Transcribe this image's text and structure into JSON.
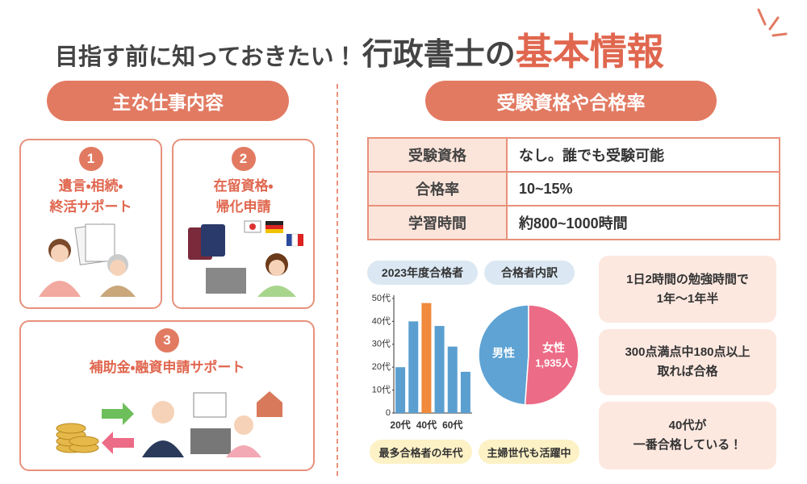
{
  "header": {
    "lead": "目指す前に知っておきたい！",
    "main": "行政書士の",
    "accent": "基本情報"
  },
  "jobs": {
    "heading": "主な仕事内容",
    "items": [
      {
        "number": "1",
        "lines": [
          "遺言・相続・",
          "終活サポート"
        ]
      },
      {
        "number": "2",
        "lines": [
          "在留資格・",
          "帰化申請"
        ]
      },
      {
        "number": "3",
        "lines": [
          "補助金・融資申請サポート"
        ]
      }
    ]
  },
  "exam": {
    "heading": "受験資格や合格率",
    "table": {
      "rows": [
        [
          "受験資格",
          "なし。誰でも受験可能"
        ],
        [
          "合格率",
          "10~15%"
        ],
        [
          "学習時間",
          "約800~1000時間"
        ]
      ]
    }
  },
  "chart_data": [
    {
      "type": "bar",
      "title": "2023年度合格者",
      "categories": [
        "20代",
        null,
        "40代",
        null,
        "60代",
        null
      ],
      "values": [
        20,
        40,
        48,
        38,
        29,
        18
      ],
      "colors": [
        "#5b9fd0",
        "#5b9fd0",
        "#f08a3c",
        "#5b9fd0",
        "#5b9fd0",
        "#5b9fd0"
      ],
      "ylim": [
        0,
        50
      ],
      "yticks": [
        0,
        {
          "value": 10,
          "label": "10代"
        },
        {
          "value": 20,
          "label": "20代"
        },
        {
          "value": 30,
          "label": "30代"
        },
        {
          "value": 40,
          "label": "40代"
        },
        {
          "value": 50,
          "label": "50代"
        }
      ],
      "annotation": "最多合格者の年代"
    },
    {
      "type": "pie",
      "title": "合格者内訳",
      "categories": [
        "男性",
        "女性"
      ],
      "values": [
        1850,
        1935
      ],
      "value_labels": [
        null,
        "1,935人"
      ],
      "colors": [
        "#5ea3d4",
        "#ec6b86"
      ],
      "annotation": "主婦世代も活躍中"
    }
  ],
  "notes": [
    {
      "lines": [
        "1日2時間の勉強時間で",
        "1年〜1年半"
      ]
    },
    {
      "lines": [
        "300点満点中180点以上",
        "取れば合格"
      ]
    },
    {
      "lines": [
        "40代が",
        "一番合格している！"
      ]
    }
  ]
}
